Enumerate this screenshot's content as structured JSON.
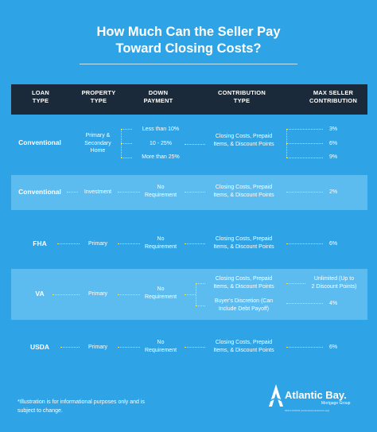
{
  "title": {
    "line1": "How Much Can the Seller Pay",
    "line2": "Toward Closing Costs?"
  },
  "headers": {
    "loan_type": [
      "LOAN",
      "TYPE"
    ],
    "property_type": [
      "PROPERTY",
      "TYPE"
    ],
    "down_payment": [
      "DOWN",
      "PAYMENT"
    ],
    "contribution_type": [
      "CONTRIBUTION",
      "TYPE"
    ],
    "max_seller_contribution": [
      "MAX SELLER",
      "CONTRIBUTION"
    ]
  },
  "rows": {
    "conventional1": {
      "loan": "Conventional",
      "property": [
        "Primary &",
        "Secondary",
        "Home"
      ],
      "down": [
        "Less than 10%",
        "10 - 25%",
        "More than 25%"
      ],
      "contribution": [
        "Closing Costs, Prepaid",
        "Items, & Discount Points"
      ],
      "max": [
        "3%",
        "6%",
        "9%"
      ]
    },
    "conventional2": {
      "loan": "Conventional",
      "property": "Investment",
      "down": [
        "No",
        "Requirement"
      ],
      "contribution": [
        "Closing Costs, Prepaid",
        "Items, & Discount Points"
      ],
      "max": "2%"
    },
    "fha": {
      "loan": "FHA",
      "property": "Primary",
      "down": [
        "No",
        "Requirement"
      ],
      "contribution": [
        "Closing Costs, Prepaid",
        "Items, & Discount Points"
      ],
      "max": "6%"
    },
    "va": {
      "loan": "VA",
      "property": "Primary",
      "down": [
        "No",
        "Requirement"
      ],
      "contribution1": [
        "Closing Costs, Prepaid",
        "Items, & Discount Points"
      ],
      "contribution2": [
        "Buyer's Discretion (Can",
        "Include Debt Payoff)"
      ],
      "max1": [
        "Unlimited (Up to",
        "2 Discount Points)"
      ],
      "max2": "4%"
    },
    "usda": {
      "loan": "USDA",
      "property": "Primary",
      "down": [
        "No",
        "Requirement"
      ],
      "contribution": [
        "Closing Costs, Prepaid",
        "Items, & Discount Points"
      ],
      "max": "6%"
    }
  },
  "footnote": [
    "*Illustration is for informational purposes only and is",
    "subject to change."
  ],
  "logo": {
    "name": "Atlantic Bay.",
    "sub": "Mortgage Group",
    "fine": "NMLS #72043 (nmlsconsumeraccess.org)"
  },
  "colors": {
    "background": "#2ea3e6",
    "band": "#5cbcf0",
    "header": "#1a2a3a",
    "dots": "#ffe04a"
  }
}
